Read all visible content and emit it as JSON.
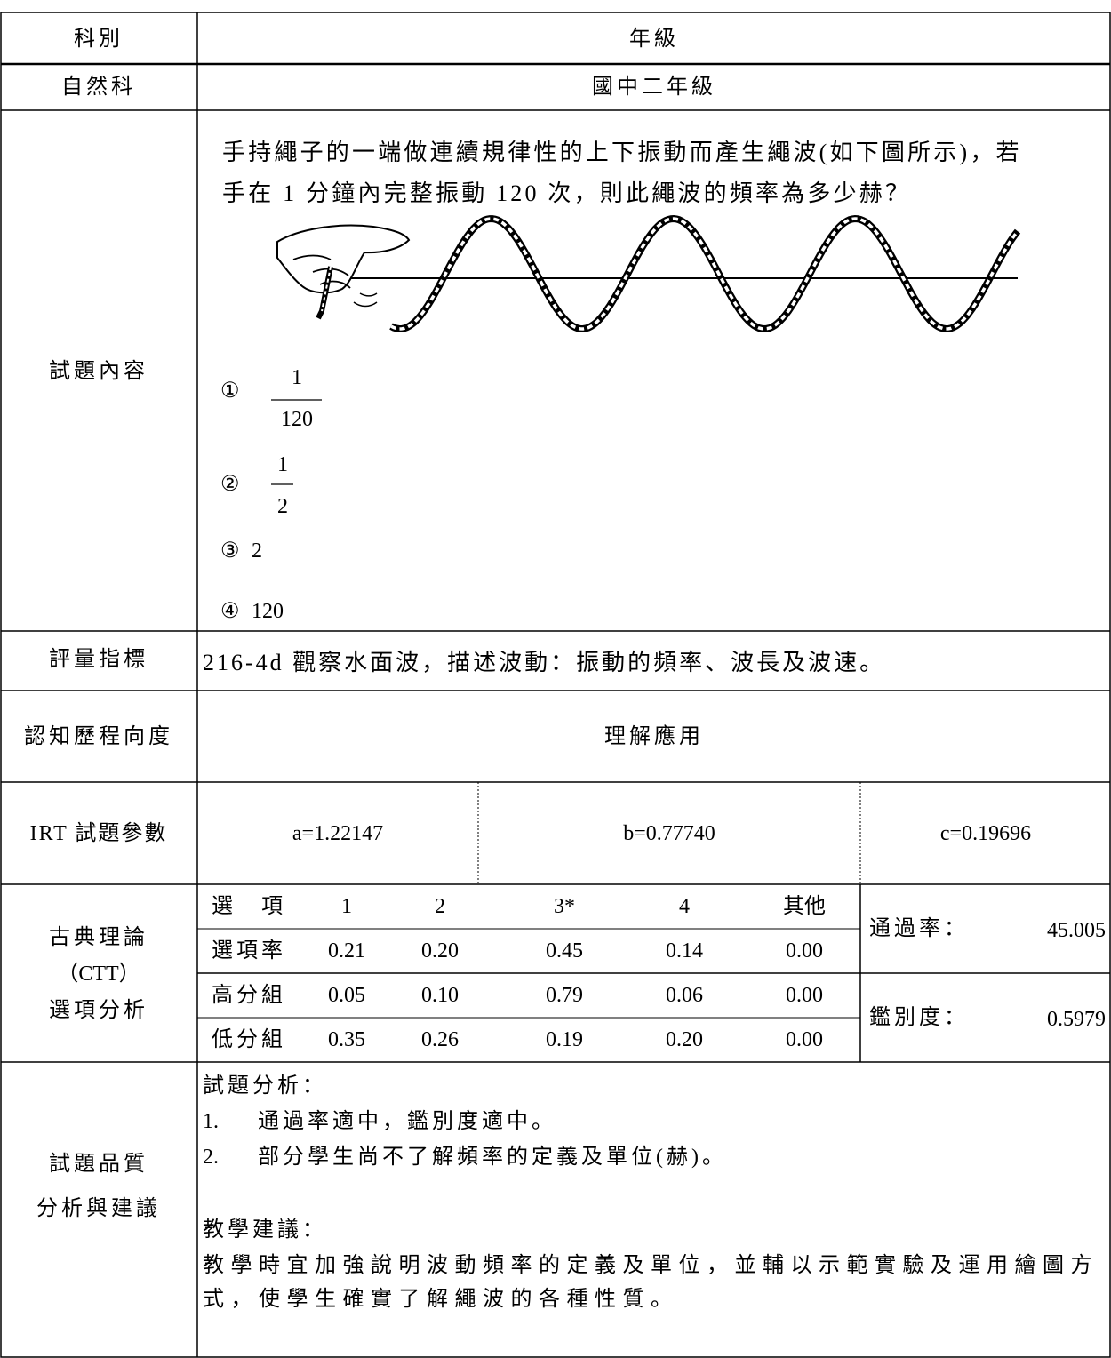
{
  "header": {
    "subject_label": "科別",
    "grade_label": "年級",
    "subject": "自然科",
    "grade": "國中二年級"
  },
  "question": {
    "label": "試題內容",
    "stem_lines": [
      "手持繩子的一端做連續規律性的上下振動而產生繩波(如下圖所示)，若",
      "手在 1 分鐘內完整振動 120 次，則此繩波的頻率為多少赫？"
    ],
    "options": [
      {
        "marker": "①",
        "numerator": "1",
        "denominator": "120"
      },
      {
        "marker": "②",
        "numerator": "1",
        "denominator": "2"
      },
      {
        "marker": "③",
        "text": "2"
      },
      {
        "marker": "④",
        "text": "120"
      }
    ]
  },
  "indicator": {
    "label": "評量指標",
    "text": "216-4d 觀察水面波，描述波動：振動的頻率、波長及波速。"
  },
  "cognitive": {
    "label": "認知歷程向度",
    "text": "理解應用"
  },
  "irt": {
    "label": "IRT 試題參數",
    "a": "a=1.22147",
    "b": "b=0.77740",
    "c": "c=0.19696"
  },
  "ctt": {
    "label_lines": [
      "古典理論",
      "（CTT）",
      "選項分析"
    ],
    "table": {
      "header": [
        "選　項",
        "1",
        "2",
        "3*",
        "4",
        "其他"
      ],
      "rows": [
        [
          "選項率",
          "0.21",
          "0.20",
          "0.45",
          "0.14",
          "0.00"
        ],
        [
          "高分組",
          "0.05",
          "0.10",
          "0.79",
          "0.06",
          "0.00"
        ],
        [
          "低分組",
          "0.35",
          "0.26",
          "0.19",
          "0.20",
          "0.00"
        ]
      ]
    },
    "pass_rate": {
      "label": "通過率：",
      "value": "45.005"
    },
    "discrimination": {
      "label": "鑑別度：",
      "value": "0.5979"
    }
  },
  "quality": {
    "label_lines": [
      "試題品質",
      "分析與建議"
    ],
    "analysis_title": "試題分析：",
    "analysis_items": [
      {
        "num": "1.",
        "text": "通過率適中，鑑別度適中。"
      },
      {
        "num": "2.",
        "text": "部分學生尚不了解頻率的定義及單位(赫)。"
      }
    ],
    "suggestion_title": "教學建議：",
    "suggestion_lines": [
      "教學時宜加強說明波動頻率的定義及單位，並輔以示範實驗及運用繪圖方",
      "式，使學生確實了解繩波的各種性質。"
    ]
  }
}
